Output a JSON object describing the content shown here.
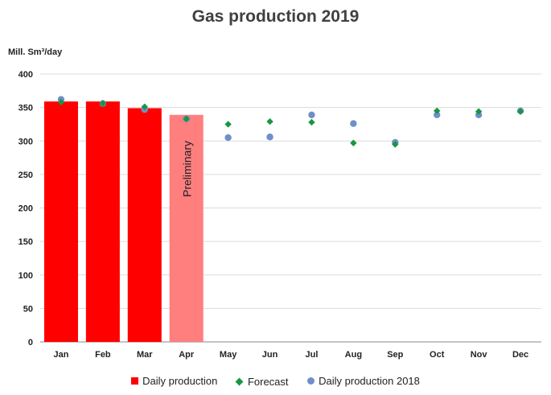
{
  "chart_data": {
    "type": "bar",
    "title": "Gas production 2019",
    "ylabel": "Mill. Sm³/day",
    "xlabel": "",
    "ylim": [
      0,
      400
    ],
    "yticks": [
      0,
      50,
      100,
      150,
      200,
      250,
      300,
      350,
      400
    ],
    "grid": true,
    "legend_position": "bottom",
    "categories": [
      "Jan",
      "Feb",
      "Mar",
      "Apr",
      "May",
      "Jun",
      "Jul",
      "Aug",
      "Sep",
      "Oct",
      "Nov",
      "Dec"
    ],
    "series": [
      {
        "name": "Daily production",
        "kind": "bar",
        "color": "#ff0000",
        "preliminary_color": "#ff7f7f",
        "values": [
          359,
          359,
          349,
          339,
          null,
          null,
          null,
          null,
          null,
          null,
          null,
          null
        ],
        "annotations": [
          {
            "category": "Apr",
            "text": "Preliminary"
          }
        ]
      },
      {
        "name": "Forecast",
        "kind": "diamond",
        "color": "#1a9641",
        "values": [
          358,
          356,
          351,
          333,
          325,
          329,
          328,
          297,
          295,
          345,
          344,
          344
        ]
      },
      {
        "name": "Daily production 2018",
        "kind": "dot",
        "color": "#6f8fc9",
        "values": [
          362,
          356,
          347,
          333,
          305,
          306,
          339,
          326,
          298,
          339,
          339,
          345
        ]
      }
    ]
  }
}
